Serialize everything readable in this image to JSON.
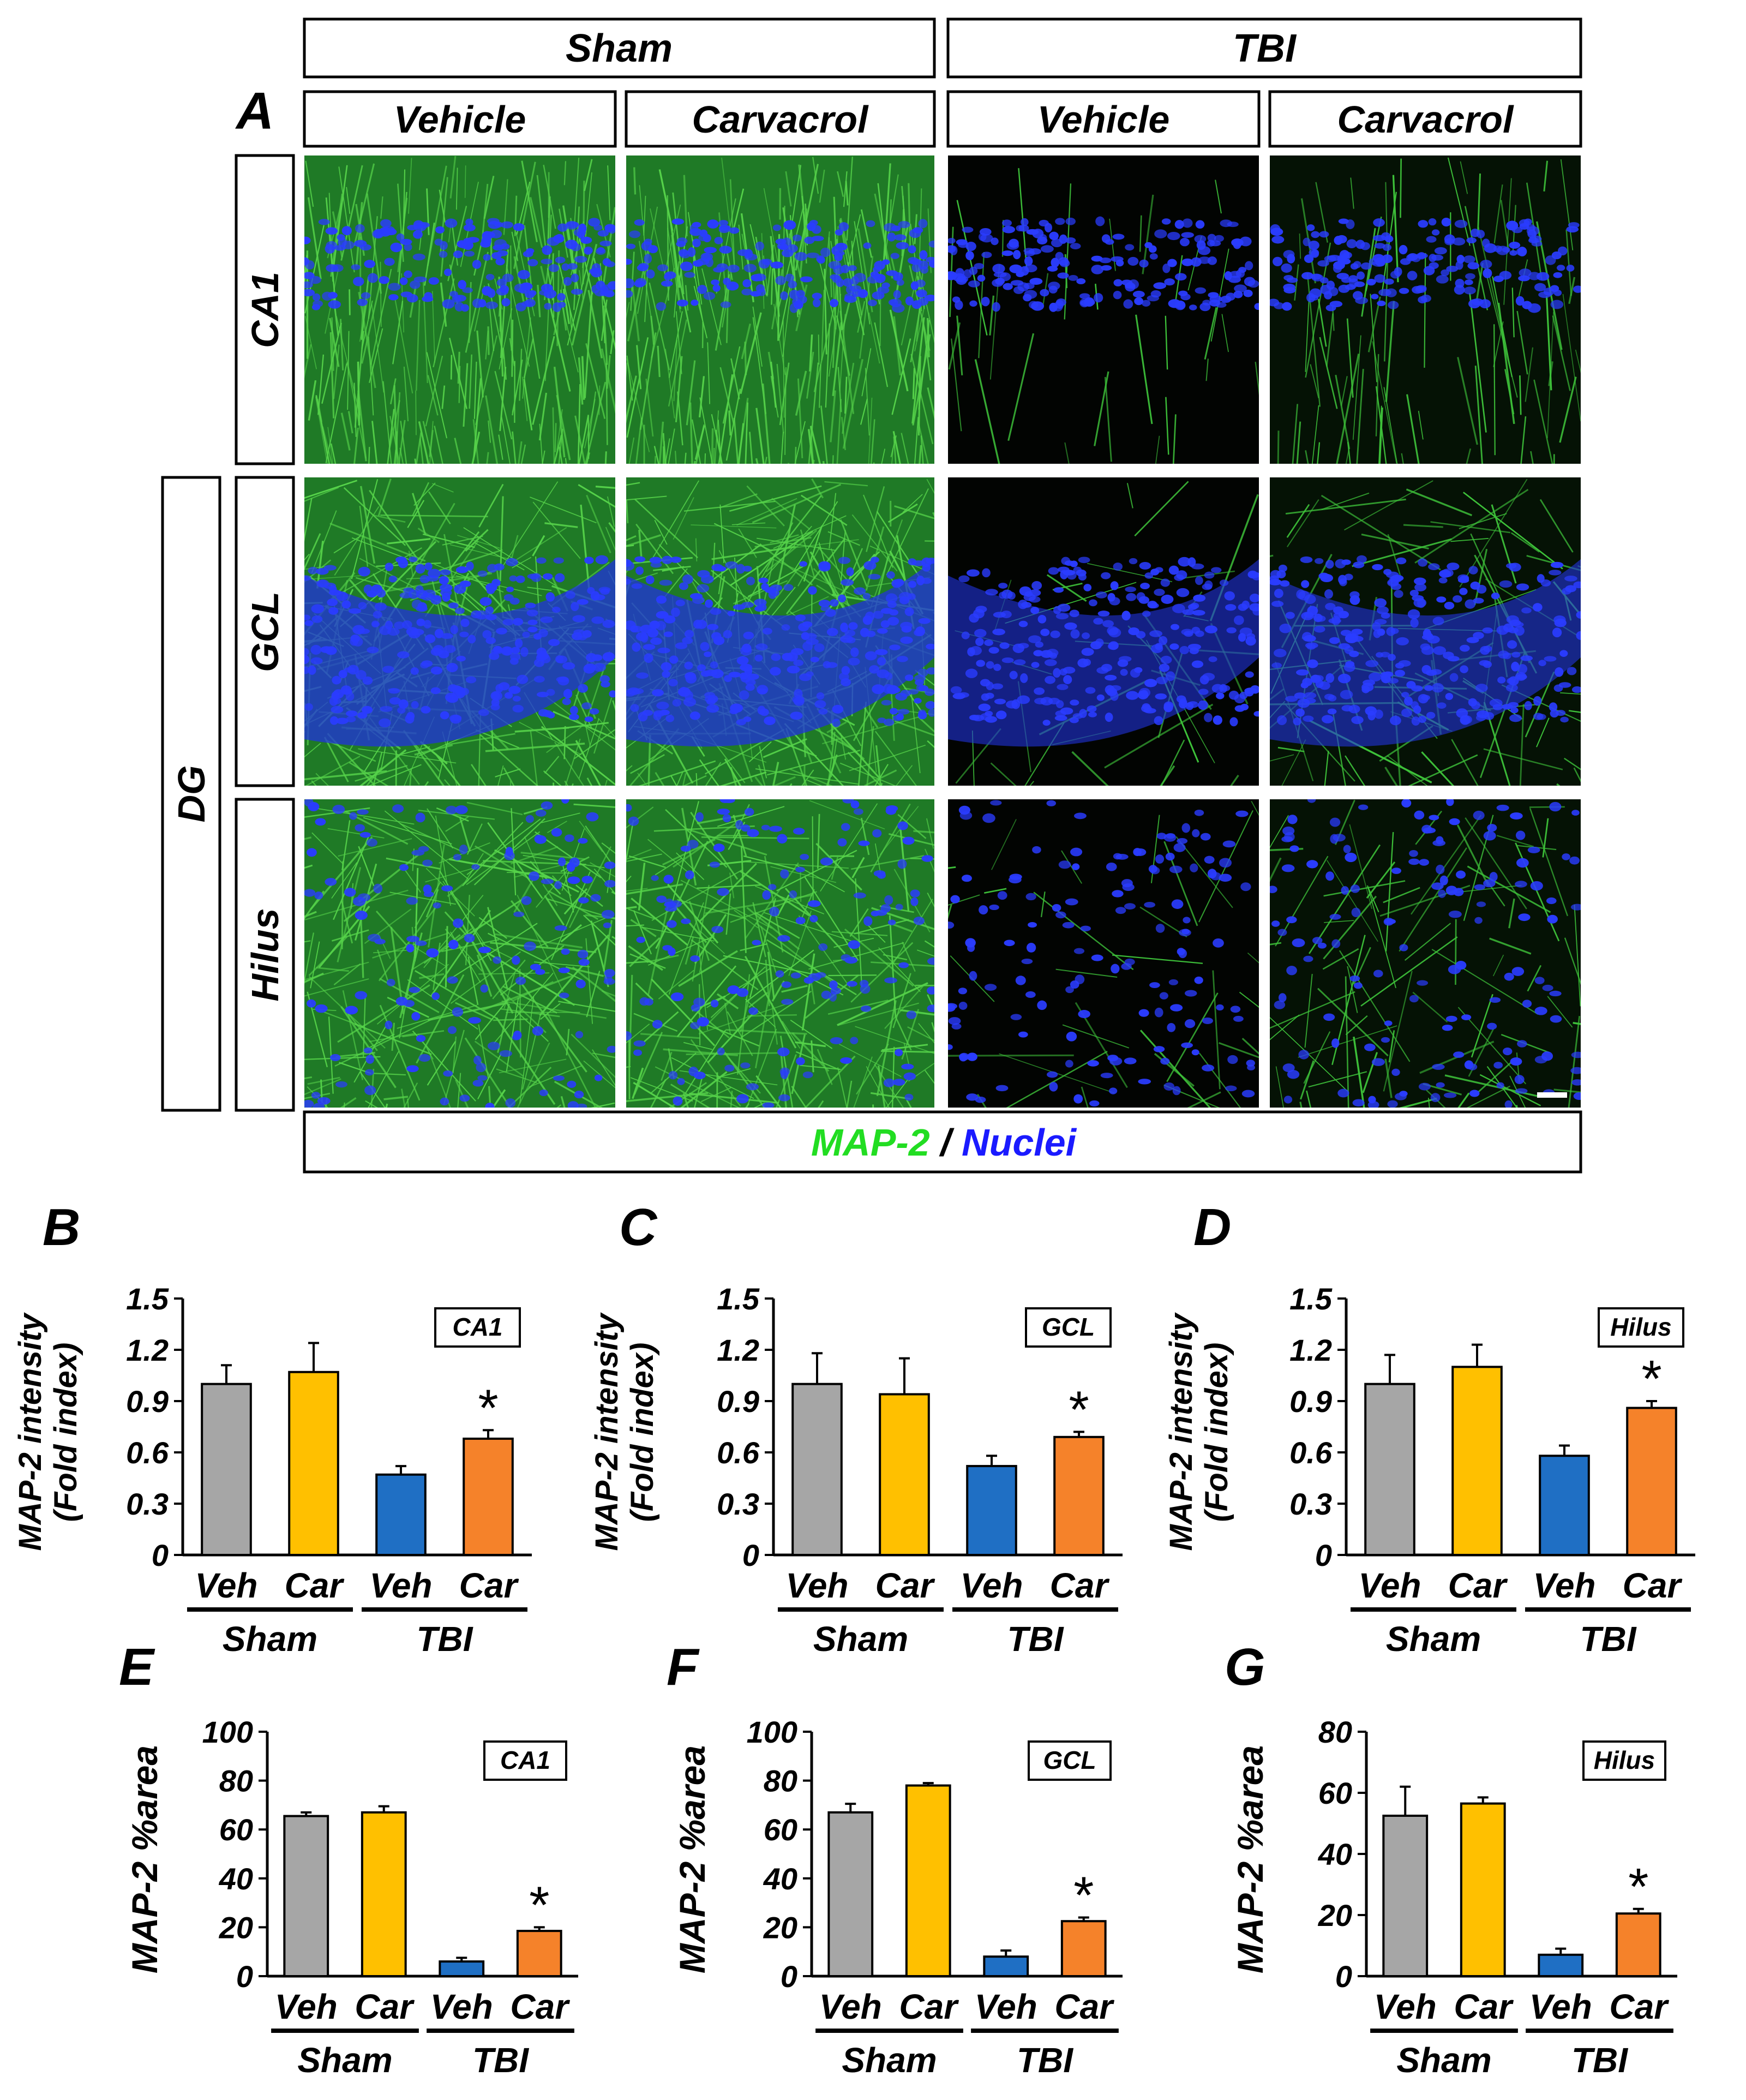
{
  "panel_a": {
    "letter": "A",
    "groups": [
      "Sham",
      "TBI"
    ],
    "treatments": [
      "Vehicle",
      "Carvacrol",
      "Vehicle",
      "Carvacrol"
    ],
    "regions": [
      "CA1",
      "GCL",
      "Hilus"
    ],
    "region_group": "DG",
    "legend": {
      "marker": "MAP-2",
      "separator": " / ",
      "nuclei": "Nuclei"
    },
    "colors": {
      "marker": "#22dd22",
      "nuclei": "#1a1aff"
    }
  },
  "chart_data": [
    {
      "type": "bar",
      "panel": "B",
      "region": "CA1",
      "categories": [
        "Veh",
        "Car",
        "Veh",
        "Car"
      ],
      "groups": [
        "Sham",
        "TBI"
      ],
      "values": [
        1.0,
        1.07,
        0.47,
        0.68
      ],
      "errors": [
        0.11,
        0.17,
        0.05,
        0.05
      ],
      "significant": [
        false,
        false,
        false,
        true
      ],
      "ylabel_line1": "MAP-2 intensity",
      "ylabel_line2": "(Fold index)",
      "ylim": [
        0,
        1.5
      ],
      "yticks": [
        "0",
        "0.3",
        "0.6",
        "0.9",
        "1.2",
        "1.5"
      ],
      "colors": [
        "#a6a6a6",
        "#ffc000",
        "#1f6fc4",
        "#f5822a"
      ],
      "sig_mark": "*"
    },
    {
      "type": "bar",
      "panel": "C",
      "region": "GCL",
      "categories": [
        "Veh",
        "Car",
        "Veh",
        "Car"
      ],
      "groups": [
        "Sham",
        "TBI"
      ],
      "values": [
        1.0,
        0.94,
        0.52,
        0.69
      ],
      "errors": [
        0.18,
        0.21,
        0.06,
        0.03
      ],
      "significant": [
        false,
        false,
        false,
        true
      ],
      "ylabel_line1": "MAP-2 intensity",
      "ylabel_line2": "(Fold index)",
      "ylim": [
        0,
        1.5
      ],
      "yticks": [
        "0",
        "0.3",
        "0.6",
        "0.9",
        "1.2",
        "1.5"
      ],
      "colors": [
        "#a6a6a6",
        "#ffc000",
        "#1f6fc4",
        "#f5822a"
      ],
      "sig_mark": "*"
    },
    {
      "type": "bar",
      "panel": "D",
      "region": "Hilus",
      "categories": [
        "Veh",
        "Car",
        "Veh",
        "Car"
      ],
      "groups": [
        "Sham",
        "TBI"
      ],
      "values": [
        1.0,
        1.1,
        0.58,
        0.86
      ],
      "errors": [
        0.17,
        0.13,
        0.06,
        0.04
      ],
      "significant": [
        false,
        false,
        false,
        true
      ],
      "ylabel_line1": "MAP-2 intensity",
      "ylabel_line2": "(Fold index)",
      "ylim": [
        0,
        1.5
      ],
      "yticks": [
        "0",
        "0.3",
        "0.6",
        "0.9",
        "1.2",
        "1.5"
      ],
      "colors": [
        "#a6a6a6",
        "#ffc000",
        "#1f6fc4",
        "#f5822a"
      ],
      "sig_mark": "*"
    },
    {
      "type": "bar",
      "panel": "E",
      "region": "CA1",
      "categories": [
        "Veh",
        "Car",
        "Veh",
        "Car"
      ],
      "groups": [
        "Sham",
        "TBI"
      ],
      "values": [
        65.5,
        67,
        6,
        18.5
      ],
      "errors": [
        1.5,
        2.5,
        1.5,
        1.5
      ],
      "significant": [
        false,
        false,
        false,
        true
      ],
      "ylabel_line1": "MAP-2 %area",
      "ylabel_line2": "",
      "ylim": [
        0,
        100
      ],
      "yticks": [
        "0",
        "20",
        "40",
        "60",
        "80",
        "100"
      ],
      "colors": [
        "#a6a6a6",
        "#ffc000",
        "#1f6fc4",
        "#f5822a"
      ],
      "sig_mark": "*"
    },
    {
      "type": "bar",
      "panel": "F",
      "region": "GCL",
      "categories": [
        "Veh",
        "Car",
        "Veh",
        "Car"
      ],
      "groups": [
        "Sham",
        "TBI"
      ],
      "values": [
        67,
        78,
        8,
        22.5
      ],
      "errors": [
        3.5,
        1.0,
        2.5,
        1.5
      ],
      "significant": [
        false,
        false,
        false,
        true
      ],
      "ylabel_line1": "MAP-2 %area",
      "ylabel_line2": "",
      "ylim": [
        0,
        100
      ],
      "yticks": [
        "0",
        "20",
        "40",
        "60",
        "80",
        "100"
      ],
      "colors": [
        "#a6a6a6",
        "#ffc000",
        "#1f6fc4",
        "#f5822a"
      ],
      "sig_mark": "*"
    },
    {
      "type": "bar",
      "panel": "G",
      "region": "Hilus",
      "categories": [
        "Veh",
        "Car",
        "Veh",
        "Car"
      ],
      "groups": [
        "Sham",
        "TBI"
      ],
      "values": [
        52.5,
        56.5,
        7,
        20.5
      ],
      "errors": [
        9.5,
        2,
        2,
        1.5
      ],
      "significant": [
        false,
        false,
        false,
        true
      ],
      "ylabel_line1": "MAP-2 %area",
      "ylabel_line2": "",
      "ylim": [
        0,
        80
      ],
      "yticks": [
        "0",
        "20",
        "40",
        "60",
        "80"
      ],
      "colors": [
        "#a6a6a6",
        "#ffc000",
        "#1f6fc4",
        "#f5822a"
      ],
      "sig_mark": "*"
    }
  ]
}
